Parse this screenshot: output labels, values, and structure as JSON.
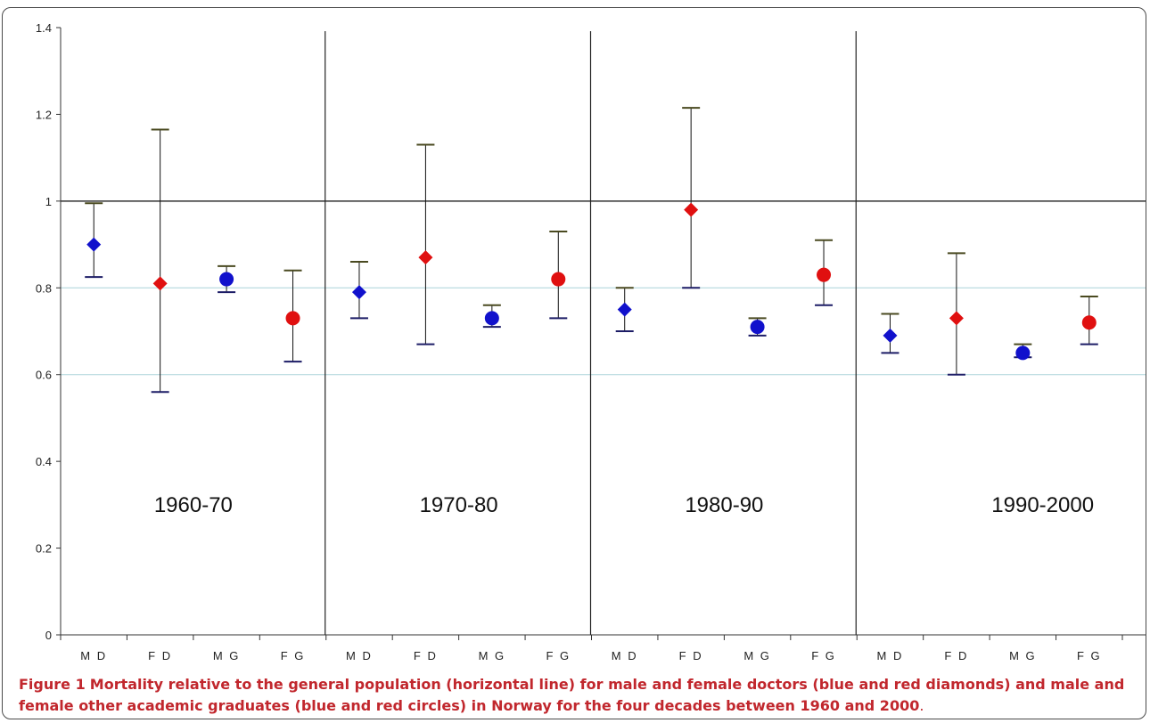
{
  "chart_data": {
    "type": "scatter",
    "ylim": [
      0,
      1.4
    ],
    "y_ticks": [
      "0",
      "0.2",
      "0.4",
      "0.6",
      "0.8",
      "1",
      "1.2",
      "1.4"
    ],
    "y_tick_values": [
      0,
      0.2,
      0.4,
      0.6,
      0.8,
      1.0,
      1.2,
      1.4
    ],
    "reference_line": 1,
    "gridlines": [
      0.6,
      0.8
    ],
    "categories": [
      "M D",
      "F D",
      "M G",
      "F G",
      "M D",
      "F D",
      "M G",
      "F G",
      "M D",
      "F D",
      "M G",
      "F G",
      "M D",
      "F D",
      "M G",
      "F G"
    ],
    "decades": [
      "1960-70",
      "1970-80",
      "1980-90",
      "1990-2000"
    ],
    "points": [
      {
        "group": "MD",
        "decade": "1960-70",
        "value": 0.9,
        "low": 0.825,
        "high": 0.995,
        "marker": "diamond",
        "color": "#1111cc"
      },
      {
        "group": "FD",
        "decade": "1960-70",
        "value": 0.81,
        "low": 0.56,
        "high": 1.165,
        "marker": "diamond",
        "color": "#e01010"
      },
      {
        "group": "MG",
        "decade": "1960-70",
        "value": 0.82,
        "low": 0.79,
        "high": 0.85,
        "marker": "circle",
        "color": "#1111cc"
      },
      {
        "group": "FG",
        "decade": "1960-70",
        "value": 0.73,
        "low": 0.63,
        "high": 0.84,
        "marker": "circle",
        "color": "#e01010"
      },
      {
        "group": "MD",
        "decade": "1970-80",
        "value": 0.79,
        "low": 0.73,
        "high": 0.86,
        "marker": "diamond",
        "color": "#1111cc"
      },
      {
        "group": "FD",
        "decade": "1970-80",
        "value": 0.87,
        "low": 0.67,
        "high": 1.13,
        "marker": "diamond",
        "color": "#e01010"
      },
      {
        "group": "MG",
        "decade": "1970-80",
        "value": 0.73,
        "low": 0.71,
        "high": 0.76,
        "marker": "circle",
        "color": "#1111cc"
      },
      {
        "group": "FG",
        "decade": "1970-80",
        "value": 0.82,
        "low": 0.73,
        "high": 0.93,
        "marker": "circle",
        "color": "#e01010"
      },
      {
        "group": "MD",
        "decade": "1980-90",
        "value": 0.75,
        "low": 0.7,
        "high": 0.8,
        "marker": "diamond",
        "color": "#1111cc"
      },
      {
        "group": "FD",
        "decade": "1980-90",
        "value": 0.98,
        "low": 0.8,
        "high": 1.215,
        "marker": "diamond",
        "color": "#e01010"
      },
      {
        "group": "MG",
        "decade": "1980-90",
        "value": 0.71,
        "low": 0.69,
        "high": 0.73,
        "marker": "circle",
        "color": "#1111cc"
      },
      {
        "group": "FG",
        "decade": "1980-90",
        "value": 0.83,
        "low": 0.76,
        "high": 0.91,
        "marker": "circle",
        "color": "#e01010"
      },
      {
        "group": "MD",
        "decade": "1990-2000",
        "value": 0.69,
        "low": 0.65,
        "high": 0.74,
        "marker": "diamond",
        "color": "#1111cc"
      },
      {
        "group": "FD",
        "decade": "1990-2000",
        "value": 0.73,
        "low": 0.6,
        "high": 0.88,
        "marker": "diamond",
        "color": "#e01010"
      },
      {
        "group": "MG",
        "decade": "1990-2000",
        "value": 0.65,
        "low": 0.64,
        "high": 0.67,
        "marker": "circle",
        "color": "#1111cc"
      },
      {
        "group": "FG",
        "decade": "1990-2000",
        "value": 0.72,
        "low": 0.67,
        "high": 0.78,
        "marker": "circle",
        "color": "#e01010"
      }
    ],
    "colors": {
      "reference_line": "#333333",
      "gridline": "#aad4d9",
      "divider": "#222222",
      "error_bar": "#111111",
      "cap_top": "#4a4a20",
      "cap_bottom": "#1c1c66"
    }
  },
  "caption": {
    "label": "Figure 1",
    "text": "Mortality relative to the general population (horizontal line) for male and female doctors (blue and red diamonds) and male and female other academic graduates (blue and red circles) in Norway for the four decades between 1960 and 2000",
    "end": "."
  }
}
